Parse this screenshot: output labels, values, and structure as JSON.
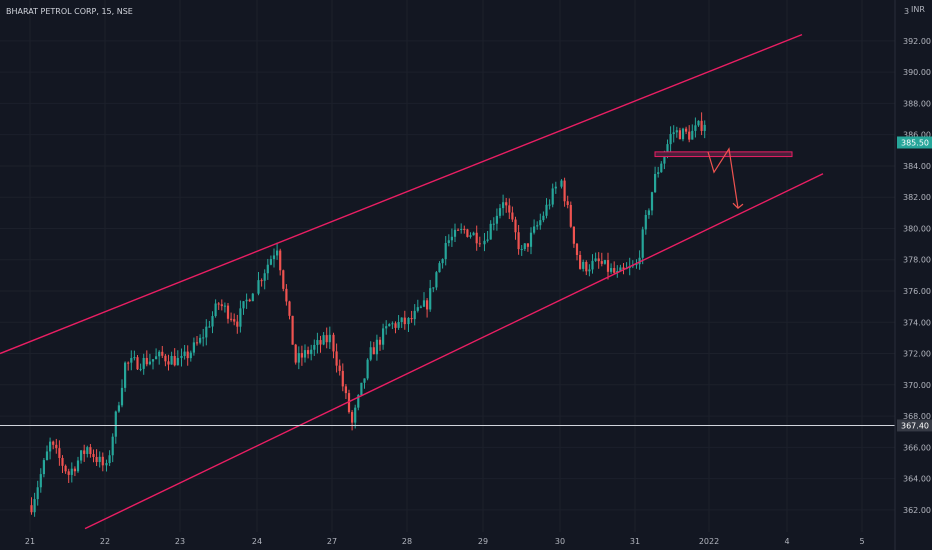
{
  "header": {
    "title": "BHARAT PETROL CORP, 15, NSE",
    "currency": "INR",
    "currency_prefix": "3"
  },
  "colors": {
    "background": "#131722",
    "up": "#26a69a",
    "down": "#ef5350",
    "channel": "#e91e63",
    "level_line": "#d1d4dc",
    "last_price_badge": "#26a69a",
    "zone_fill": "#4a1f3a"
  },
  "chart_data": {
    "type": "candlestick",
    "title": "BHARAT PETROL CORP, 15, NSE",
    "y_ticks": [
      "392.00",
      "390.00",
      "388.00",
      "386.00",
      "384.00",
      "382.00",
      "380.00",
      "378.00",
      "376.00",
      "374.00",
      "372.00",
      "370.00",
      "368.00",
      "366.00",
      "364.00",
      "362.00"
    ],
    "ylim": [
      361.0,
      393.8
    ],
    "x_ticks": [
      "21",
      "22",
      "23",
      "24",
      "27",
      "28",
      "29",
      "30",
      "31",
      "2022",
      "4",
      "5"
    ],
    "last_price": "385.50",
    "horizontal_level": "367.40",
    "channel_upper": {
      "from": [
        "21",
        372.0
      ],
      "to": [
        "5",
        392.4
      ]
    },
    "channel_lower": {
      "from": [
        "22",
        360.8
      ],
      "to": [
        "5",
        383.5
      ]
    },
    "resistance_zone": {
      "low": 384.6,
      "high": 384.9,
      "from_x": "31",
      "to_x": "4"
    },
    "projected_path": [
      384.9,
      383.6,
      385.1,
      381.3
    ],
    "session_anchors": [
      [
        362.3,
        366.2,
        364.3,
        366.0,
        364.6
      ],
      [
        364.6,
        371.3,
        371.5,
        371.8,
        371.5
      ],
      [
        371.5,
        372.8,
        375.2,
        374.1,
        376.6
      ],
      [
        376.6,
        378.9,
        371.5,
        372.4,
        373.1
      ],
      [
        372.4,
        367.5,
        372.0,
        373.8,
        374.0
      ],
      [
        374.0,
        375.2,
        379.1,
        379.9,
        379.3
      ],
      [
        379.3,
        381.9,
        378.4,
        380.5,
        383.0
      ],
      [
        383.0,
        377.5,
        377.8,
        377.0,
        377.6
      ],
      [
        377.6,
        383.1,
        386.2,
        386.0,
        387.0
      ],
      [
        387.0,
        385.5
      ]
    ]
  }
}
